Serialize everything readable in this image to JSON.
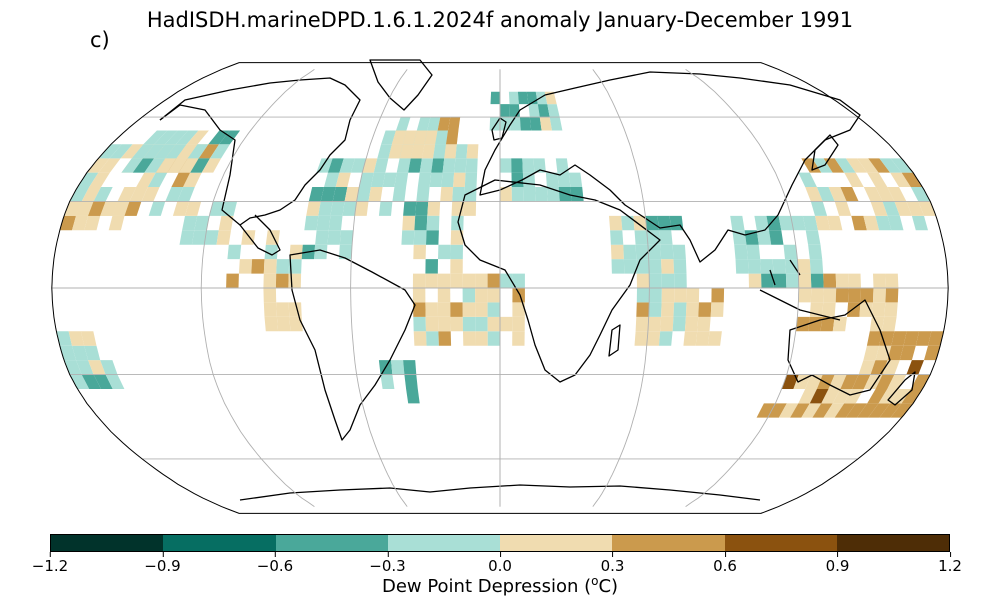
{
  "title": "HadISDH.marineDPD.1.6.1.2024f anomaly January-December 1991",
  "panel_label": "c)",
  "colorbar": {
    "ticks": [
      "−1.2",
      "−0.9",
      "−0.6",
      "−0.3",
      "0.0",
      "0.3",
      "0.6",
      "0.9",
      "1.2"
    ],
    "label_main": "Dew Point Depression (",
    "label_sup": "o",
    "label_end": "C)",
    "colors": [
      "#01332b",
      "#066e62",
      "#4aa89a",
      "#a9dfd6",
      "#f0dcb0",
      "#cb9a4d",
      "#8b520f",
      "#4e2d06"
    ]
  },
  "chart_data": {
    "type": "heatmap",
    "projection": "Robinson",
    "variable": "Dew Point Depression anomaly",
    "unit": "°C",
    "clim": [
      -1.2,
      1.2
    ],
    "grid_step_deg": 5,
    "gridlines": {
      "lon": [
        -120,
        -60,
        0,
        60,
        120
      ],
      "lat": [
        -60,
        -30,
        0,
        30,
        60
      ]
    },
    "regions": [
      {
        "lon": [
          -180,
          -130
        ],
        "lat": [
          25,
          50
        ],
        "value": 0.1
      },
      {
        "lon": [
          -165,
          -125
        ],
        "lat": [
          40,
          55
        ],
        "value": -0.15
      },
      {
        "lon": [
          -180,
          -150
        ],
        "lat": [
          20,
          30
        ],
        "value": 0.15
      },
      {
        "lon": [
          -130,
          -110
        ],
        "lat": [
          15,
          30
        ],
        "value": 0.1
      },
      {
        "lon": [
          -110,
          -80
        ],
        "lat": [
          0,
          20
        ],
        "value": 0.12
      },
      {
        "lon": [
          -95,
          -80
        ],
        "lat": [
          -15,
          0
        ],
        "value": 0.2
      },
      {
        "lon": [
          -80,
          -60
        ],
        "lat": [
          25,
          45
        ],
        "value": -0.15
      },
      {
        "lon": [
          -60,
          -10
        ],
        "lat": [
          25,
          55
        ],
        "value": -0.1
      },
      {
        "lon": [
          -50,
          -20
        ],
        "lat": [
          45,
          60
        ],
        "value": 0.12
      },
      {
        "lon": [
          -40,
          -15
        ],
        "lat": [
          5,
          25
        ],
        "value": -0.15
      },
      {
        "lon": [
          -80,
          -60
        ],
        "lat": [
          10,
          25
        ],
        "value": -0.2
      },
      {
        "lon": [
          -35,
          10
        ],
        "lat": [
          -20,
          5
        ],
        "value": 0.12
      },
      {
        "lon": [
          -50,
          -35
        ],
        "lat": [
          -40,
          -25
        ],
        "value": -0.3
      },
      {
        "lon": [
          -5,
          30
        ],
        "lat": [
          55,
          70
        ],
        "value": -0.2
      },
      {
        "lon": [
          0,
          35
        ],
        "lat": [
          30,
          45
        ],
        "value": -0.2
      },
      {
        "lon": [
          45,
          75
        ],
        "lat": [
          0,
          25
        ],
        "value": -0.15
      },
      {
        "lon": [
          55,
          90
        ],
        "lat": [
          -20,
          0
        ],
        "value": 0.12
      },
      {
        "lon": [
          95,
          130
        ],
        "lat": [
          0,
          25
        ],
        "value": -0.15
      },
      {
        "lon": [
          130,
          180
        ],
        "lat": [
          20,
          45
        ],
        "value": 0.12
      },
      {
        "lon": [
          120,
          160
        ],
        "lat": [
          -15,
          5
        ],
        "value": 0.2
      },
      {
        "lon": [
          115,
          180
        ],
        "lat": [
          -45,
          -30
        ],
        "value": 0.4
      },
      {
        "lon": [
          150,
          180
        ],
        "lat": [
          -30,
          -15
        ],
        "value": 0.45
      },
      {
        "lon": [
          -180,
          -160
        ],
        "lat": [
          -35,
          -15
        ],
        "value": -0.15
      }
    ]
  }
}
